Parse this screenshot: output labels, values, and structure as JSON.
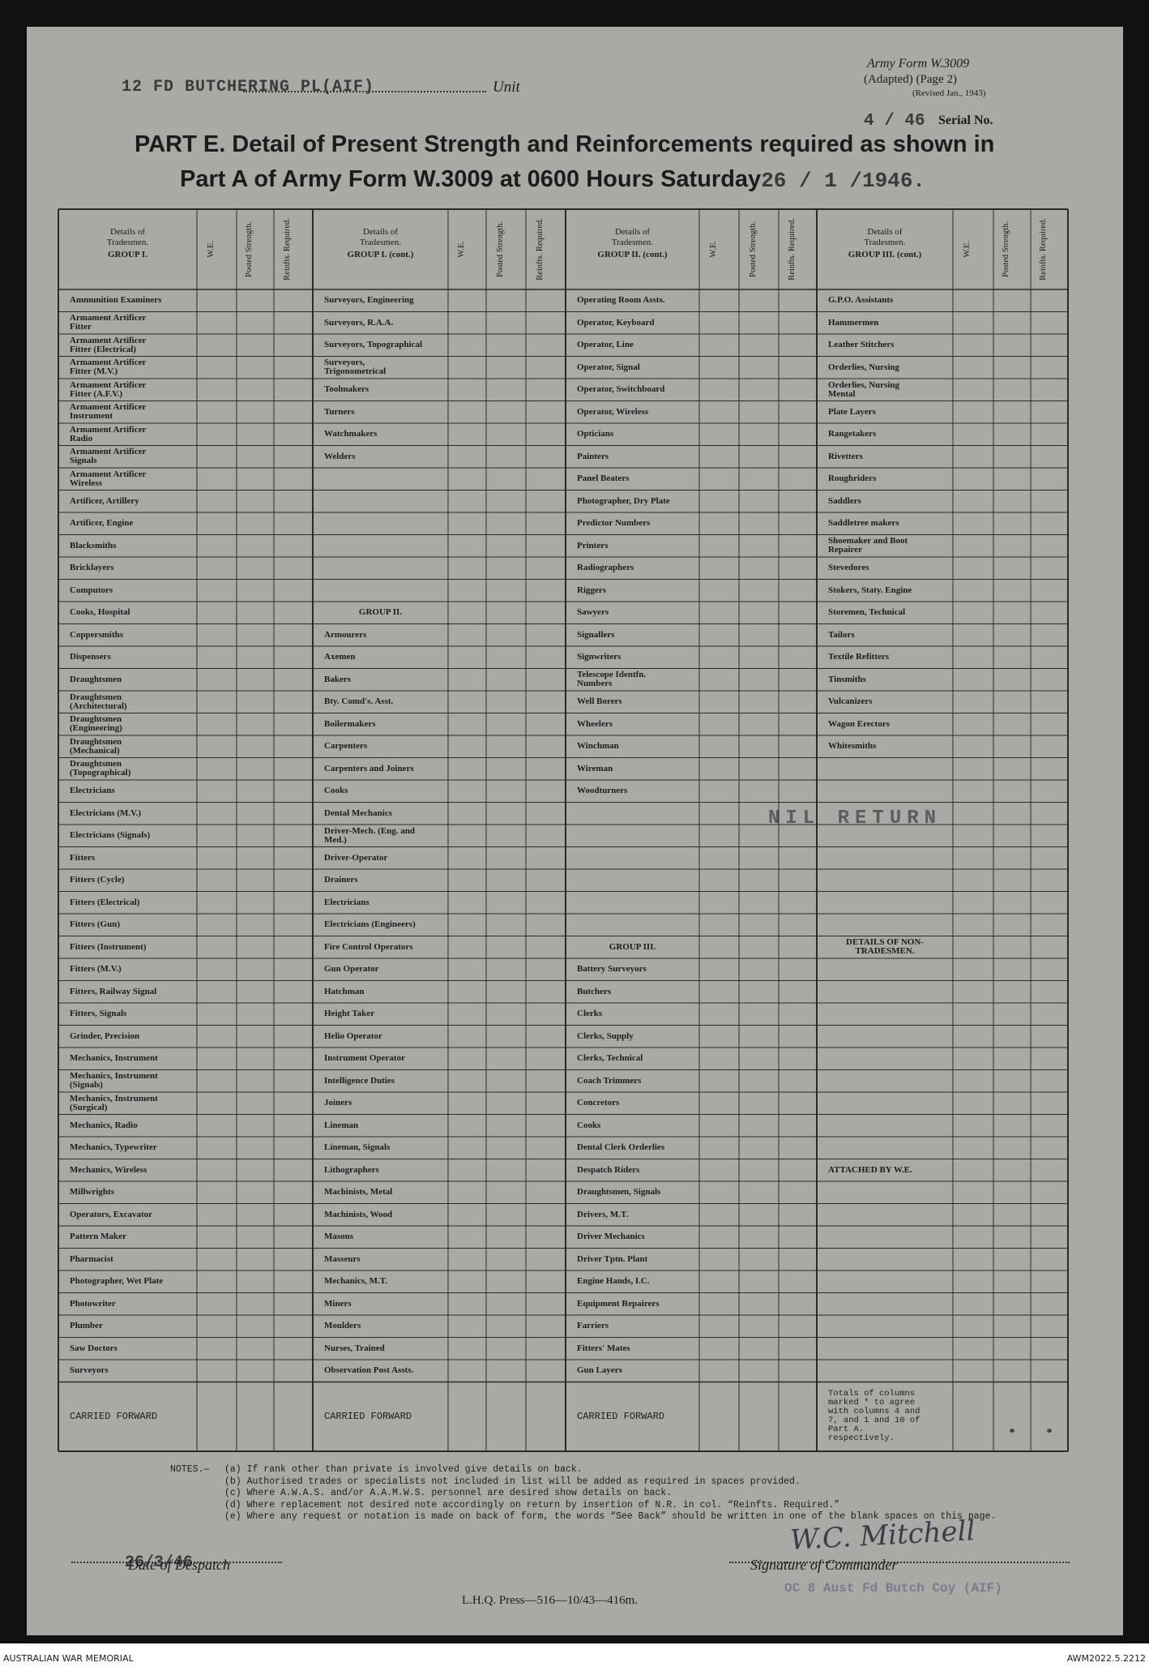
{
  "header": {
    "unit_typed": "12 FD BUTCHERING PL(AIF)",
    "unit_label": "Unit",
    "form_name": "Army Form W.3009",
    "form_adapted": "(Adapted) (Page 2)",
    "form_revised": "(Revised Jan., 1943)",
    "serial_number": "4 / 46",
    "serial_label": "Serial No.",
    "title_line1": "PART E. Detail of Present Strength and Reinforcements required as shown in",
    "title_line2": "Part A of Army Form W.3009 at 0600 Hours Saturday",
    "date": "26 / 1 /1946."
  },
  "table": {
    "groups": [
      {
        "details": "Details of Tradesmen.",
        "group": "GROUP I."
      },
      {
        "details": "Details of Tradesmen.",
        "group": "GROUP I. (cont.)"
      },
      {
        "details": "Details of Tradesmen.",
        "group": "GROUP II. (cont.)"
      },
      {
        "details": "Details of Tradesmen.",
        "group": "GROUP III. (cont.)"
      }
    ],
    "column_labels": [
      "W.E.",
      "Posted Strength.",
      "Reinfts. Required."
    ],
    "rows": [
      [
        "Ammunition Examiners",
        "Surveyors, Engineering",
        "Operating Room Assts.",
        "G.P.O. Assistants"
      ],
      [
        "Armament Artificer Fitter",
        "Surveyors, R.A.A.",
        "Operator, Keyboard",
        "Hammermen"
      ],
      [
        "Armament Artificer Fitter (Electrical)",
        "Surveyors, Topographical",
        "Operator, Line",
        "Leather Stitchers"
      ],
      [
        "Armament Artificer Fitter (M.V.)",
        "Surveyors, Trigonometrical",
        "Operator, Signal",
        "Orderlies, Nursing"
      ],
      [
        "Armament Artificer Fitter (A.F.V.)",
        "Toolmakers",
        "Operator, Switchboard",
        "Orderlies, Nursing Mental"
      ],
      [
        "Armament Artificer Instrument",
        "Turners",
        "Operator, Wireless",
        "Plate Layers"
      ],
      [
        "Armament Artificer Radio",
        "Watchmakers",
        "Opticians",
        "Rangetakers"
      ],
      [
        "Armament Artificer Signals",
        "Welders",
        "Painters",
        "Rivetters"
      ],
      [
        "Armament Artificer Wireless",
        null,
        "Panel Beaters",
        "Roughriders"
      ],
      [
        "Artificer, Artillery",
        null,
        "Photographer, Dry Plate",
        "Saddlers"
      ],
      [
        "Artificer, Engine",
        null,
        "Predictor Numbers",
        "Saddletree makers"
      ],
      [
        "Blacksmiths",
        null,
        "Printers",
        "Shoemaker and Boot Repairer"
      ],
      [
        "Bricklayers",
        null,
        "Radiographers",
        "Stevedores"
      ],
      [
        "Computors",
        null,
        "Riggers",
        "Stokers, Staty. Engine"
      ],
      [
        "Cooks, Hospital",
        "GROUP II.",
        "Sawyers",
        "Storemen, Technical"
      ],
      [
        "Coppersmiths",
        "Armourers",
        "Signallers",
        "Tailors"
      ],
      [
        "Dispensers",
        "Axemen",
        "Signwriters",
        "Textile Refitters"
      ],
      [
        "Draughtsmen",
        "Bakers",
        "Telescope Identfn. Numbers",
        "Tinsmiths"
      ],
      [
        "Draughtsmen (Architectural)",
        "Bty. Comd's. Asst.",
        "Well Borers",
        "Vulcanizers"
      ],
      [
        "Draughtsmen (Engineering)",
        "Boilermakers",
        "Wheelers",
        "Wagon Erectors"
      ],
      [
        "Draughtsmen (Mechanical)",
        "Carpenters",
        "Winchman",
        "Whitesmiths"
      ],
      [
        "Draughtsmen (Topographical)",
        "Carpenters and Joiners",
        "Wireman",
        null
      ],
      [
        "Electricians",
        "Cooks",
        "Woodturners",
        null
      ],
      [
        "Electricians (M.V.)",
        "Dental Mechanics",
        null,
        null
      ],
      [
        "Electricians (Signals)",
        "Driver-Mech. (Eng. and Med.)",
        null,
        null
      ],
      [
        "Fitters",
        "Driver-Operator",
        null,
        null
      ],
      [
        "Fitters (Cycle)",
        "Drainers",
        null,
        null
      ],
      [
        "Fitters (Electrical)",
        "Electricians",
        null,
        null
      ],
      [
        "Fitters (Gun)",
        "Electricians (Engineers)",
        null,
        null
      ],
      [
        "Fitters (Instrument)",
        "Fire Control Operators",
        "GROUP III.",
        "DETAILS OF NON-TRADESMEN."
      ],
      [
        "Fitters (M.V.)",
        "Gun Operator",
        "Battery Surveyors",
        null
      ],
      [
        "Fitters, Railway Signal",
        "Hatchman",
        "Butchers",
        null
      ],
      [
        "Fitters, Signals",
        "Height Taker",
        "Clerks",
        null
      ],
      [
        "Grinder, Precision",
        "Helio Operator",
        "Clerks, Supply",
        null
      ],
      [
        "Mechanics, Instrument",
        "Instrument Operator",
        "Clerks, Technical",
        null
      ],
      [
        "Mechanics, Instrument (Signals)",
        "Intelligence Duties",
        "Coach Trimmers",
        null
      ],
      [
        "Mechanics, Instrument (Surgical)",
        "Joiners",
        "Concretors",
        null
      ],
      [
        "Mechanics, Radio",
        "Lineman",
        "Cooks",
        null
      ],
      [
        "Mechanics, Typewriter",
        "Lineman, Signals",
        "Dental Clerk Orderlies",
        null
      ],
      [
        "Mechanics, Wireless",
        "Lithographers",
        "Despatch Riders",
        "ATTACHED BY W.E."
      ],
      [
        "Millwrights",
        "Machinists, Metal",
        "Draughtsmen, Signals",
        null
      ],
      [
        "Operators, Excavator",
        "Machinists, Wood",
        "Drivers, M.T.",
        null
      ],
      [
        "Pattern Maker",
        "Masons",
        "Driver Mechanics",
        null
      ],
      [
        "Pharmacist",
        "Masseurs",
        "Driver Tptn. Plant",
        null
      ],
      [
        "Photographer, Wet Plate",
        "Mechanics, M.T.",
        "Engine Hands, I.C.",
        null
      ],
      [
        "Photowriter",
        "Miners",
        "Equipment Repairers",
        null
      ],
      [
        "Plumber",
        "Moulders",
        "Farriers",
        null
      ],
      [
        "Saw Doctors",
        "Nurses, Trained",
        "Fitters' Mates",
        null
      ],
      [
        "Surveyors",
        "Observation Post Assts.",
        "Gun Layers",
        null
      ]
    ],
    "carried_forward": [
      "CARRIED FORWARD",
      "CARRIED FORWARD",
      "CARRIED FORWARD",
      "Totals of columns marked * to agree with columns 4 and 7, and 1 and 10 of Part A. respectively."
    ],
    "totals_marks": [
      "*",
      "*"
    ],
    "stamp": "NIL RETURN"
  },
  "notes": {
    "heading": "NOTES.—",
    "items": [
      "(a) If rank other than private is involved give details on back.",
      "(b) Authorised trades or specialists not included in list will be added as required in spaces provided.",
      "(c) Where A.W.A.S. and/or A.A.M.W.S. personnel are desired show details on back.",
      "(d) Where replacement not desired note accordingly on return by insertion of N.R. in col. “Reinfts. Required.”",
      "(e) Where any request or notation is made on back of form, the words “See Back” should be written in one of the blank spaces on this page."
    ]
  },
  "signoff": {
    "despatch_date": "26/3/46",
    "despatch_label": "Date of Despatch",
    "signature": "W.C. Mitchell",
    "signature_label": "Signature of Commander",
    "unit_stamp": "OC 8 Aust Fd Butch Coy (AIF)",
    "press_line": "L.H.Q. Press—516—10/43—416m."
  },
  "footer": {
    "left": "AUSTRALIAN WAR MEMORIAL",
    "right": "AWM2022.5.2212"
  }
}
